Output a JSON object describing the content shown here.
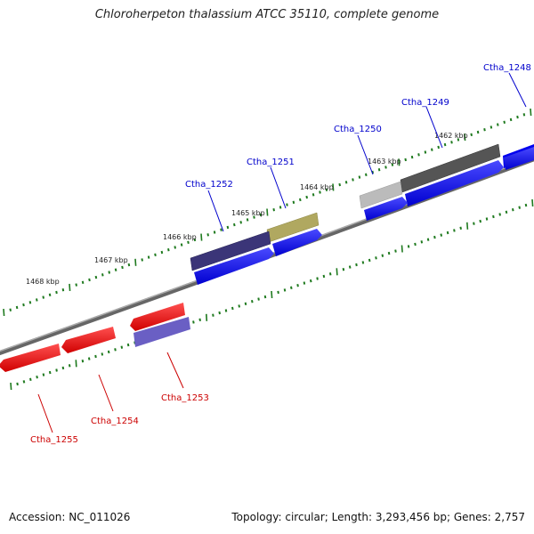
{
  "title": "Chloroherpeton thalassium ATCC 35110, complete genome",
  "footer": {
    "accession": "Accession: NC_011026",
    "summary": "Topology: circular; Length: 3,293,456 bp; Genes: 2,757"
  },
  "colors": {
    "backbone": "#888888",
    "forward_gene": "#0000ee",
    "reverse_gene": "#ee0000",
    "forward_label": "#0000cc",
    "reverse_label": "#cc0000",
    "tick": "#1f7a1f"
  },
  "scale": {
    "labels": [
      "1462 kbp",
      "1463 kbp",
      "1464 kbp",
      "1465 kbp",
      "1466 kbp",
      "1467 kbp",
      "1468 kbp"
    ]
  },
  "genes": [
    {
      "label": "Ctha_1248",
      "strand": "forward",
      "feature_color": "#555555"
    },
    {
      "label": "Ctha_1249",
      "strand": "forward",
      "feature_color": "#555555"
    },
    {
      "label": "Ctha_1250",
      "strand": "forward",
      "feature_color": "#bbbbbb"
    },
    {
      "label": "Ctha_1251",
      "strand": "forward",
      "feature_color": "#b0a860"
    },
    {
      "label": "Ctha_1252",
      "strand": "forward",
      "feature_color": "#3b3578"
    },
    {
      "label": "Ctha_1253",
      "strand": "reverse",
      "feature_color": "#6a5fc4"
    },
    {
      "label": "Ctha_1254",
      "strand": "reverse",
      "feature_color": "#ee0000"
    },
    {
      "label": "Ctha_1255",
      "strand": "reverse",
      "feature_color": "#ee0000"
    }
  ]
}
